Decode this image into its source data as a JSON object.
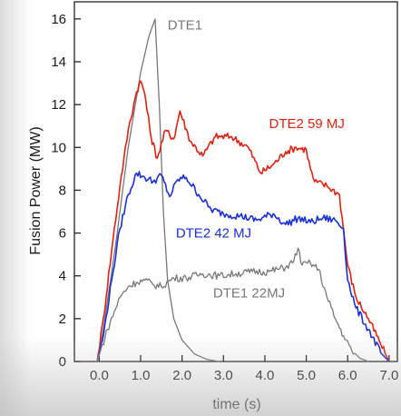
{
  "chart_data": {
    "type": "line",
    "xlabel": "time (s)",
    "ylabel": "Fusion Power (MW)",
    "xlim": [
      -0.6,
      7.2
    ],
    "ylim": [
      0,
      16.8
    ],
    "x_ticks": [
      "0.0",
      "1.0",
      "2.0",
      "3.0",
      "4.0",
      "5.0",
      "6.0",
      "7.0"
    ],
    "y_ticks": [
      "0",
      "2",
      "4",
      "6",
      "8",
      "10",
      "12",
      "14",
      "16"
    ],
    "grid": false,
    "series": [
      {
        "name": "DTE1",
        "color": "#777777",
        "x": [
          -0.05,
          0.1,
          0.4,
          0.7,
          1.0,
          1.2,
          1.35,
          1.45,
          1.55,
          1.65,
          1.8,
          2.0,
          2.3,
          2.6,
          2.9
        ],
        "y": [
          0,
          1.5,
          5.5,
          10.0,
          13.5,
          15.2,
          16.0,
          12.0,
          7.0,
          3.8,
          2.0,
          1.0,
          0.35,
          0.1,
          0
        ]
      },
      {
        "name": "DTE2 59 MJ",
        "color": "#e02010",
        "x": [
          -0.05,
          0.1,
          0.3,
          0.5,
          0.7,
          0.9,
          1.0,
          1.1,
          1.25,
          1.4,
          1.6,
          1.8,
          1.95,
          2.2,
          2.5,
          2.8,
          3.2,
          3.6,
          3.9,
          4.2,
          4.5,
          4.75,
          5.0,
          5.1,
          5.2,
          5.5,
          5.8,
          6.0,
          6.2,
          6.5,
          6.8,
          7.0
        ],
        "y": [
          0,
          2.0,
          5.2,
          8.2,
          10.8,
          12.6,
          13.1,
          12.5,
          10.5,
          9.5,
          10.8,
          10.4,
          11.7,
          10.3,
          9.6,
          10.5,
          10.5,
          10.0,
          8.8,
          9.2,
          9.8,
          10.0,
          9.9,
          9.0,
          8.4,
          8.2,
          7.8,
          4.5,
          3.0,
          2.0,
          0.8,
          0
        ]
      },
      {
        "name": "DTE2 42 MJ",
        "color": "#1a2fd6",
        "x": [
          -0.05,
          0.1,
          0.3,
          0.5,
          0.7,
          0.9,
          1.1,
          1.3,
          1.5,
          1.7,
          1.9,
          2.1,
          2.4,
          2.7,
          3.0,
          3.4,
          3.8,
          4.2,
          4.5,
          4.8,
          5.1,
          5.4,
          5.7,
          5.9,
          6.0,
          6.2,
          6.5,
          6.8,
          7.0
        ],
        "y": [
          0,
          1.2,
          3.8,
          6.2,
          7.8,
          8.8,
          8.6,
          8.4,
          8.7,
          7.7,
          8.5,
          8.6,
          7.8,
          7.1,
          6.9,
          6.8,
          6.6,
          6.9,
          6.4,
          6.7,
          6.5,
          6.7,
          6.6,
          6.2,
          3.8,
          2.5,
          1.5,
          0.4,
          0
        ]
      },
      {
        "name": "DTE1 22MJ",
        "color": "#777777",
        "x": [
          -0.05,
          0.2,
          0.5,
          0.7,
          0.9,
          1.1,
          1.3,
          1.5,
          1.8,
          2.1,
          2.5,
          2.9,
          3.3,
          3.7,
          4.1,
          4.5,
          4.7,
          4.8,
          4.9,
          5.1,
          5.3,
          5.5,
          5.7,
          5.9,
          6.1,
          6.3,
          6.5
        ],
        "y": [
          0,
          1.5,
          3.0,
          3.5,
          3.7,
          3.8,
          3.6,
          3.5,
          3.9,
          3.9,
          4.1,
          4.0,
          4.1,
          4.2,
          4.2,
          4.4,
          4.7,
          5.3,
          4.5,
          4.6,
          4.3,
          3.0,
          2.0,
          1.2,
          0.5,
          0.15,
          0
        ]
      }
    ],
    "annotations": [
      {
        "text": "DTE1",
        "x": 1.65,
        "y": 15.5,
        "color": "#777777"
      },
      {
        "text": "DTE2 59 MJ",
        "x": 4.1,
        "y": 10.9,
        "color": "#e02010"
      },
      {
        "text": "DTE2 42 MJ",
        "x": 1.85,
        "y": 5.8,
        "color": "#1a2fd6"
      },
      {
        "text": "DTE1  22MJ",
        "x": 2.75,
        "y": 3.0,
        "color": "#777777"
      }
    ]
  }
}
